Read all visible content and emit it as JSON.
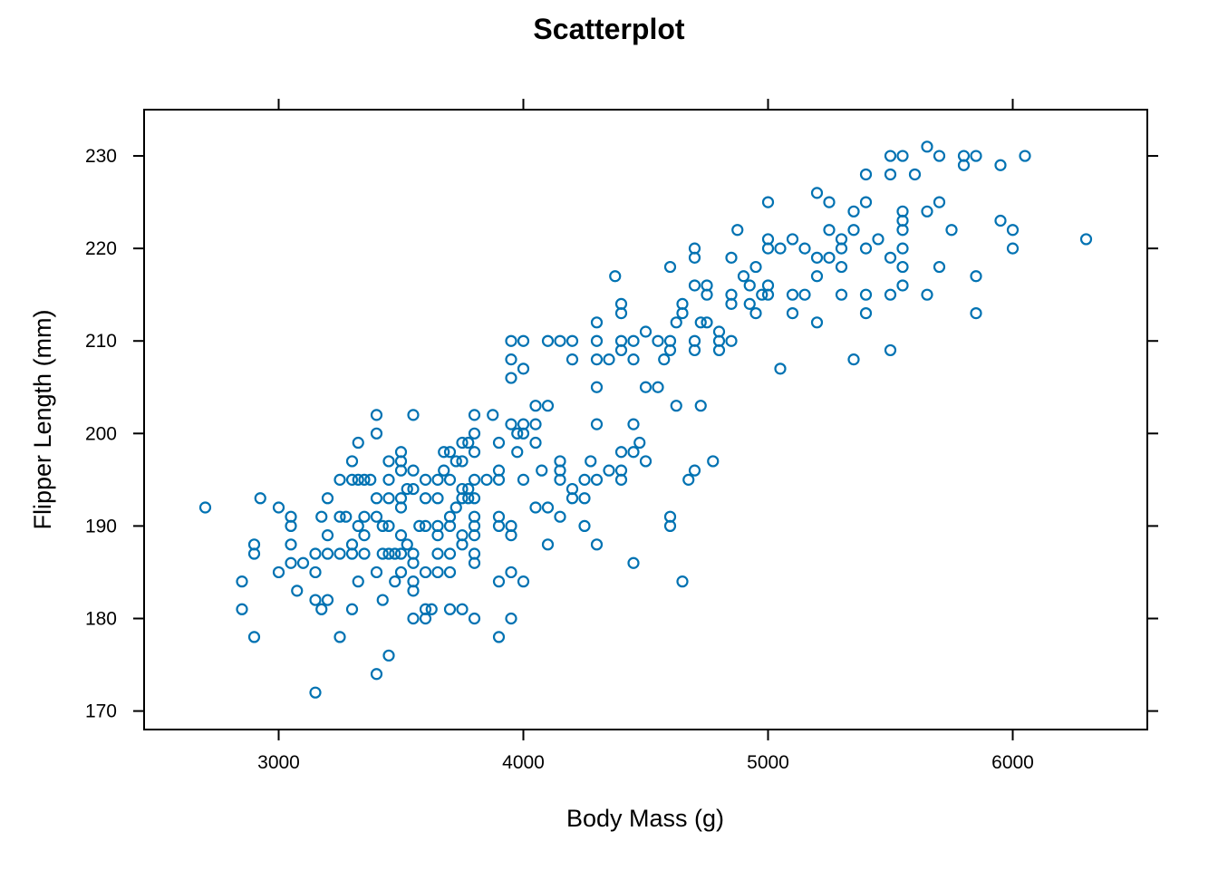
{
  "chart_data": {
    "type": "scatter",
    "title": "Scatterplot",
    "xlabel": "Body Mass (g)",
    "ylabel": "Flipper Length (mm)",
    "xlim": [
      2450,
      6550
    ],
    "ylim": [
      168,
      235
    ],
    "xticks": [
      3000,
      4000,
      5000,
      6000
    ],
    "yticks": [
      170,
      180,
      190,
      200,
      210,
      220,
      230
    ],
    "grid": false,
    "legend": "none",
    "point_color": "#0072B2",
    "points": [
      [
        2700,
        192
      ],
      [
        2850,
        184
      ],
      [
        2850,
        181
      ],
      [
        2900,
        188
      ],
      [
        2900,
        187
      ],
      [
        2900,
        178
      ],
      [
        2925,
        193
      ],
      [
        3000,
        192
      ],
      [
        3000,
        185
      ],
      [
        3050,
        191
      ],
      [
        3050,
        190
      ],
      [
        3050,
        188
      ],
      [
        3050,
        186
      ],
      [
        3075,
        183
      ],
      [
        3100,
        186
      ],
      [
        3150,
        187
      ],
      [
        3150,
        185
      ],
      [
        3150,
        182
      ],
      [
        3150,
        172
      ],
      [
        3175,
        191
      ],
      [
        3175,
        181
      ],
      [
        3200,
        193
      ],
      [
        3200,
        189
      ],
      [
        3200,
        187
      ],
      [
        3200,
        182
      ],
      [
        3250,
        195
      ],
      [
        3250,
        191
      ],
      [
        3250,
        187
      ],
      [
        3250,
        178
      ],
      [
        3275,
        191
      ],
      [
        3300,
        197
      ],
      [
        3300,
        195
      ],
      [
        3300,
        188
      ],
      [
        3300,
        187
      ],
      [
        3300,
        181
      ],
      [
        3325,
        199
      ],
      [
        3325,
        195
      ],
      [
        3325,
        190
      ],
      [
        3325,
        184
      ],
      [
        3350,
        195
      ],
      [
        3350,
        191
      ],
      [
        3350,
        189
      ],
      [
        3350,
        187
      ],
      [
        3375,
        195
      ],
      [
        3400,
        202
      ],
      [
        3400,
        200
      ],
      [
        3400,
        193
      ],
      [
        3400,
        191
      ],
      [
        3400,
        185
      ],
      [
        3400,
        174
      ],
      [
        3425,
        190
      ],
      [
        3425,
        187
      ],
      [
        3425,
        182
      ],
      [
        3450,
        197
      ],
      [
        3450,
        195
      ],
      [
        3450,
        193
      ],
      [
        3450,
        190
      ],
      [
        3450,
        187
      ],
      [
        3450,
        176
      ],
      [
        3475,
        187
      ],
      [
        3475,
        184
      ],
      [
        3500,
        198
      ],
      [
        3500,
        197
      ],
      [
        3500,
        196
      ],
      [
        3500,
        193
      ],
      [
        3500,
        192
      ],
      [
        3500,
        189
      ],
      [
        3500,
        187
      ],
      [
        3500,
        185
      ],
      [
        3525,
        194
      ],
      [
        3525,
        188
      ],
      [
        3550,
        202
      ],
      [
        3550,
        196
      ],
      [
        3550,
        194
      ],
      [
        3550,
        187
      ],
      [
        3550,
        186
      ],
      [
        3550,
        184
      ],
      [
        3550,
        183
      ],
      [
        3550,
        180
      ],
      [
        3575,
        190
      ],
      [
        3600,
        195
      ],
      [
        3600,
        193
      ],
      [
        3600,
        190
      ],
      [
        3600,
        185
      ],
      [
        3600,
        181
      ],
      [
        3600,
        180
      ],
      [
        3625,
        181
      ],
      [
        3650,
        195
      ],
      [
        3650,
        193
      ],
      [
        3650,
        190
      ],
      [
        3650,
        189
      ],
      [
        3650,
        187
      ],
      [
        3650,
        185
      ],
      [
        3675,
        198
      ],
      [
        3675,
        196
      ],
      [
        3700,
        198
      ],
      [
        3700,
        195
      ],
      [
        3700,
        191
      ],
      [
        3700,
        190
      ],
      [
        3700,
        187
      ],
      [
        3700,
        185
      ],
      [
        3700,
        181
      ],
      [
        3725,
        197
      ],
      [
        3725,
        192
      ],
      [
        3750,
        199
      ],
      [
        3750,
        197
      ],
      [
        3750,
        194
      ],
      [
        3750,
        193
      ],
      [
        3750,
        189
      ],
      [
        3750,
        188
      ],
      [
        3750,
        181
      ],
      [
        3775,
        199
      ],
      [
        3775,
        194
      ],
      [
        3775,
        193
      ],
      [
        3800,
        202
      ],
      [
        3800,
        200
      ],
      [
        3800,
        198
      ],
      [
        3800,
        195
      ],
      [
        3800,
        193
      ],
      [
        3800,
        191
      ],
      [
        3800,
        190
      ],
      [
        3800,
        189
      ],
      [
        3800,
        187
      ],
      [
        3800,
        186
      ],
      [
        3800,
        180
      ],
      [
        3850,
        195
      ],
      [
        3875,
        202
      ],
      [
        3900,
        199
      ],
      [
        3900,
        196
      ],
      [
        3900,
        195
      ],
      [
        3900,
        191
      ],
      [
        3900,
        190
      ],
      [
        3900,
        184
      ],
      [
        3900,
        178
      ],
      [
        3950,
        210
      ],
      [
        3950,
        208
      ],
      [
        3950,
        206
      ],
      [
        3950,
        201
      ],
      [
        3950,
        190
      ],
      [
        3950,
        189
      ],
      [
        3950,
        185
      ],
      [
        3950,
        180
      ],
      [
        3975,
        200
      ],
      [
        3975,
        198
      ],
      [
        4000,
        210
      ],
      [
        4000,
        207
      ],
      [
        4000,
        201
      ],
      [
        4000,
        200
      ],
      [
        4000,
        195
      ],
      [
        4000,
        184
      ],
      [
        4050,
        203
      ],
      [
        4050,
        201
      ],
      [
        4050,
        199
      ],
      [
        4050,
        192
      ],
      [
        4075,
        196
      ],
      [
        4100,
        210
      ],
      [
        4100,
        203
      ],
      [
        4100,
        192
      ],
      [
        4100,
        188
      ],
      [
        4150,
        210
      ],
      [
        4150,
        197
      ],
      [
        4150,
        196
      ],
      [
        4150,
        195
      ],
      [
        4150,
        191
      ],
      [
        4200,
        210
      ],
      [
        4200,
        208
      ],
      [
        4200,
        194
      ],
      [
        4200,
        193
      ],
      [
        4250,
        195
      ],
      [
        4250,
        193
      ],
      [
        4250,
        190
      ],
      [
        4275,
        197
      ],
      [
        4300,
        212
      ],
      [
        4300,
        210
      ],
      [
        4300,
        208
      ],
      [
        4300,
        205
      ],
      [
        4300,
        201
      ],
      [
        4300,
        195
      ],
      [
        4300,
        188
      ],
      [
        4350,
        208
      ],
      [
        4350,
        196
      ],
      [
        4375,
        217
      ],
      [
        4400,
        214
      ],
      [
        4400,
        213
      ],
      [
        4400,
        210
      ],
      [
        4400,
        209
      ],
      [
        4400,
        198
      ],
      [
        4400,
        196
      ],
      [
        4400,
        195
      ],
      [
        4450,
        210
      ],
      [
        4450,
        208
      ],
      [
        4450,
        201
      ],
      [
        4450,
        198
      ],
      [
        4450,
        186
      ],
      [
        4475,
        199
      ],
      [
        4500,
        211
      ],
      [
        4500,
        205
      ],
      [
        4500,
        197
      ],
      [
        4550,
        210
      ],
      [
        4550,
        205
      ],
      [
        4575,
        208
      ],
      [
        4600,
        218
      ],
      [
        4600,
        210
      ],
      [
        4600,
        209
      ],
      [
        4600,
        191
      ],
      [
        4600,
        190
      ],
      [
        4625,
        212
      ],
      [
        4625,
        203
      ],
      [
        4650,
        214
      ],
      [
        4650,
        213
      ],
      [
        4650,
        184
      ],
      [
        4675,
        195
      ],
      [
        4700,
        220
      ],
      [
        4700,
        219
      ],
      [
        4700,
        216
      ],
      [
        4700,
        210
      ],
      [
        4700,
        209
      ],
      [
        4700,
        196
      ],
      [
        4725,
        212
      ],
      [
        4725,
        203
      ],
      [
        4750,
        216
      ],
      [
        4750,
        215
      ],
      [
        4750,
        212
      ],
      [
        4775,
        197
      ],
      [
        4800,
        211
      ],
      [
        4800,
        210
      ],
      [
        4800,
        209
      ],
      [
        4850,
        219
      ],
      [
        4850,
        215
      ],
      [
        4850,
        214
      ],
      [
        4850,
        210
      ],
      [
        4875,
        222
      ],
      [
        4900,
        217
      ],
      [
        4925,
        216
      ],
      [
        4925,
        214
      ],
      [
        4950,
        218
      ],
      [
        4950,
        213
      ],
      [
        4975,
        215
      ],
      [
        5000,
        225
      ],
      [
        5000,
        221
      ],
      [
        5000,
        220
      ],
      [
        5000,
        216
      ],
      [
        5000,
        215
      ],
      [
        5050,
        220
      ],
      [
        5050,
        207
      ],
      [
        5100,
        221
      ],
      [
        5100,
        215
      ],
      [
        5100,
        213
      ],
      [
        5150,
        220
      ],
      [
        5150,
        215
      ],
      [
        5200,
        226
      ],
      [
        5200,
        219
      ],
      [
        5200,
        217
      ],
      [
        5200,
        212
      ],
      [
        5250,
        225
      ],
      [
        5250,
        222
      ],
      [
        5250,
        219
      ],
      [
        5300,
        221
      ],
      [
        5300,
        220
      ],
      [
        5300,
        218
      ],
      [
        5300,
        215
      ],
      [
        5350,
        224
      ],
      [
        5350,
        222
      ],
      [
        5350,
        208
      ],
      [
        5400,
        228
      ],
      [
        5400,
        225
      ],
      [
        5400,
        220
      ],
      [
        5400,
        215
      ],
      [
        5400,
        213
      ],
      [
        5450,
        221
      ],
      [
        5500,
        230
      ],
      [
        5500,
        228
      ],
      [
        5500,
        219
      ],
      [
        5500,
        215
      ],
      [
        5500,
        209
      ],
      [
        5550,
        230
      ],
      [
        5550,
        224
      ],
      [
        5550,
        223
      ],
      [
        5550,
        222
      ],
      [
        5550,
        220
      ],
      [
        5550,
        218
      ],
      [
        5550,
        216
      ],
      [
        5600,
        228
      ],
      [
        5650,
        231
      ],
      [
        5650,
        224
      ],
      [
        5650,
        215
      ],
      [
        5700,
        230
      ],
      [
        5700,
        225
      ],
      [
        5700,
        218
      ],
      [
        5750,
        222
      ],
      [
        5800,
        230
      ],
      [
        5800,
        229
      ],
      [
        5850,
        230
      ],
      [
        5850,
        217
      ],
      [
        5850,
        213
      ],
      [
        5950,
        229
      ],
      [
        5950,
        223
      ],
      [
        6000,
        222
      ],
      [
        6000,
        220
      ],
      [
        6050,
        230
      ],
      [
        6300,
        221
      ]
    ]
  }
}
